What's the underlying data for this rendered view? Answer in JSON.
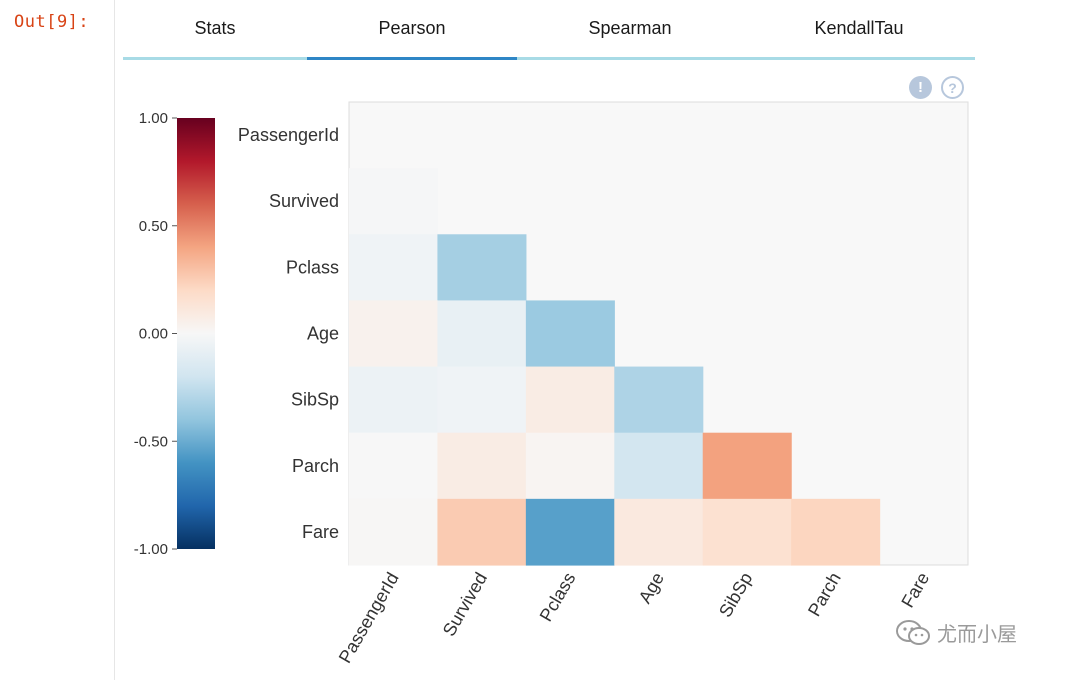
{
  "cell_prompt": "Out[9]:",
  "tabs": [
    {
      "label": "Stats",
      "active": false
    },
    {
      "label": "Pearson",
      "active": true
    },
    {
      "label": "Spearman",
      "active": false
    },
    {
      "label": "KendallTau",
      "active": false
    }
  ],
  "toolbar_icons": [
    "info-icon",
    "help-icon"
  ],
  "watermark": "尤而小屋",
  "chart_data": {
    "type": "heatmap",
    "variables": [
      "PassengerId",
      "Survived",
      "Pclass",
      "Age",
      "SibSp",
      "Parch",
      "Fare"
    ],
    "matrix": [
      [
        null,
        null,
        null,
        null,
        null,
        null,
        null
      ],
      [
        -0.01,
        null,
        null,
        null,
        null,
        null,
        null
      ],
      [
        -0.04,
        -0.34,
        null,
        null,
        null,
        null,
        null
      ],
      [
        0.04,
        -0.08,
        -0.37,
        null,
        null,
        null,
        null
      ],
      [
        -0.06,
        -0.04,
        0.08,
        -0.31,
        null,
        null,
        null
      ],
      [
        -0.0,
        0.08,
        0.02,
        -0.19,
        0.41,
        null,
        null
      ],
      [
        0.01,
        0.26,
        -0.55,
        0.1,
        0.16,
        0.22,
        null
      ]
    ],
    "colorbar": {
      "min": -1.0,
      "max": 1.0,
      "ticks": [
        "1.00",
        "0.50",
        "0.00",
        "-0.50",
        "-1.00"
      ],
      "colormap": "RdBu_r",
      "stops": [
        "#053061",
        "#2166ac",
        "#4393c3",
        "#92c5de",
        "#d1e5f0",
        "#f7f7f7",
        "#fddbc7",
        "#f4a582",
        "#d6604d",
        "#b2182b",
        "#67001f"
      ]
    },
    "background": "#f8f8f8"
  }
}
